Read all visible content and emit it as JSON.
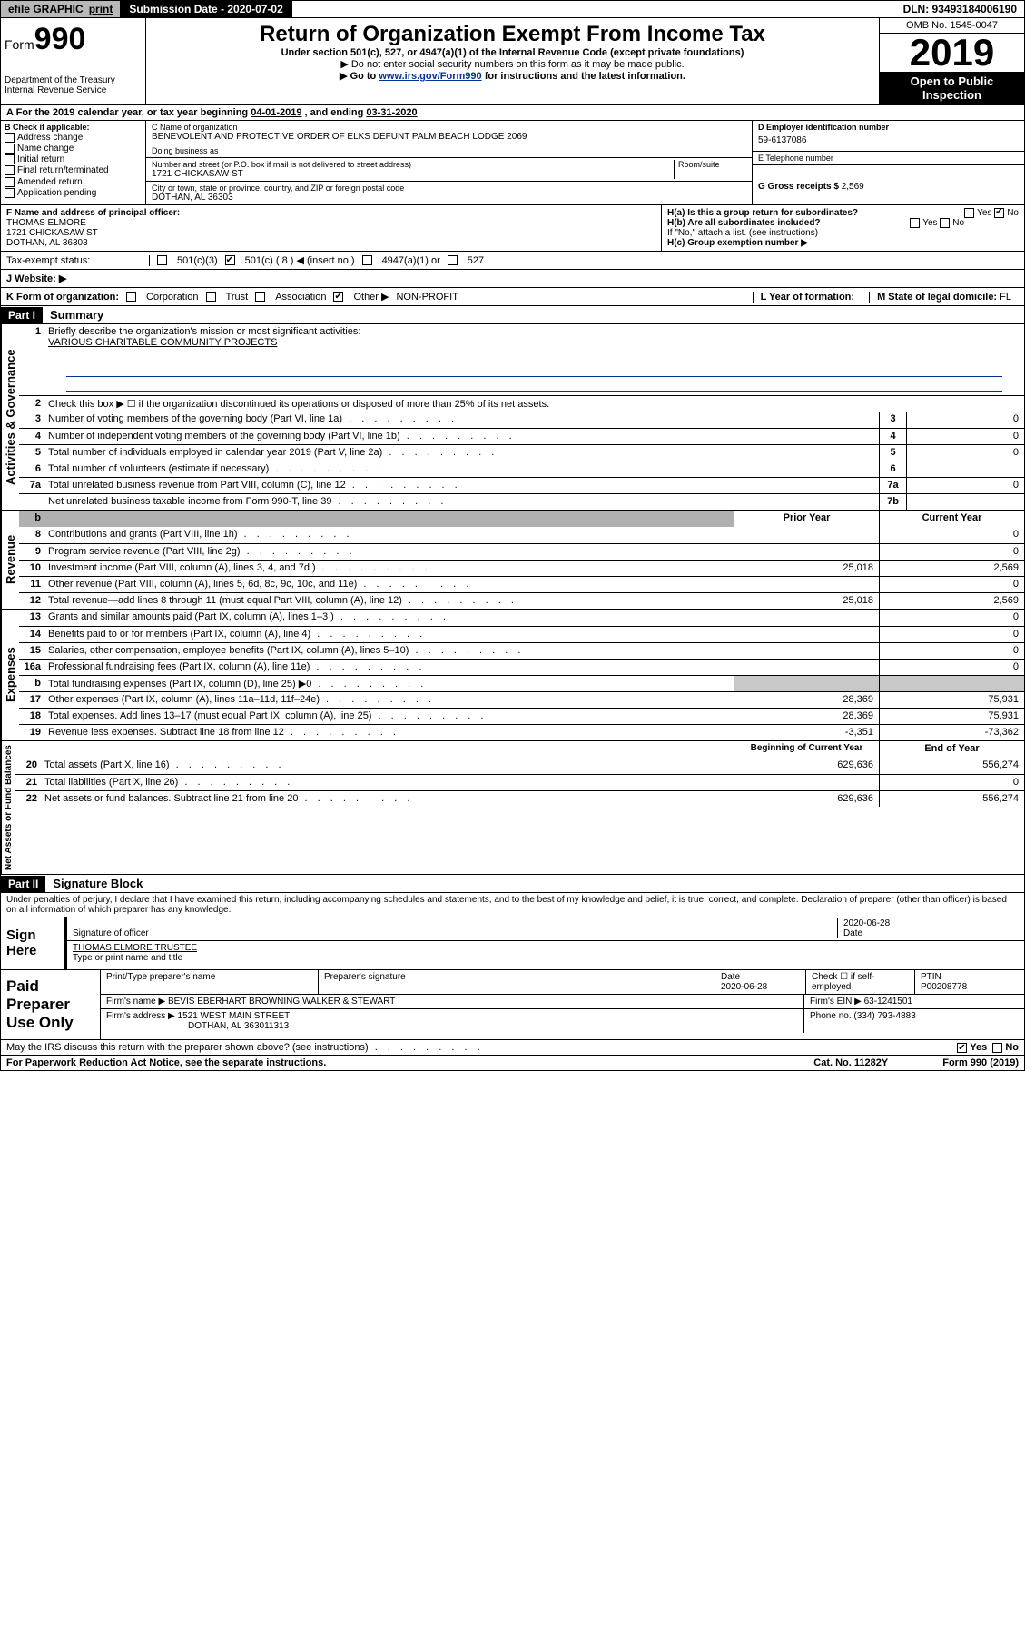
{
  "topbar": {
    "efile": "efile GRAPHIC",
    "print": "print",
    "submission_label": "Submission Date - 2020-07-02",
    "dln": "DLN: 93493184006190"
  },
  "header": {
    "form_prefix": "Form",
    "form_number": "990",
    "title": "Return of Organization Exempt From Income Tax",
    "sub1": "Under section 501(c), 527, or 4947(a)(1) of the Internal Revenue Code (except private foundations)",
    "sub2": "▶ Do not enter social security numbers on this form as it may be made public.",
    "sub3_pre": "▶ Go to ",
    "sub3_link": "www.irs.gov/Form990",
    "sub3_post": " for instructions and the latest information.",
    "dept": "Department of the Treasury",
    "irs": "Internal Revenue Service",
    "omb": "OMB No. 1545-0047",
    "year": "2019",
    "open": "Open to Public Inspection"
  },
  "period": {
    "label_a": "A For the 2019 calendar year, or tax year beginning ",
    "begin": "04-01-2019",
    "mid": " , and ending ",
    "end": "03-31-2020"
  },
  "check_b": {
    "header": "B Check if applicable:",
    "items": [
      "Address change",
      "Name change",
      "Initial return",
      "Final return/terminated",
      "Amended return",
      "Application pending"
    ]
  },
  "c_block": {
    "name_lbl": "C Name of organization",
    "name": "BENEVOLENT AND PROTECTIVE ORDER OF ELKS DEFUNT PALM BEACH LODGE 2069",
    "dba_lbl": "Doing business as",
    "dba": "",
    "addr_lbl": "Number and street (or P.O. box if mail is not delivered to street address)",
    "room_lbl": "Room/suite",
    "addr": "1721 CHICKASAW ST",
    "city_lbl": "City or town, state or province, country, and ZIP or foreign postal code",
    "city": "DOTHAN, AL  36303"
  },
  "d_block": {
    "ein_lbl": "D Employer identification number",
    "ein": "59-6137086",
    "tel_lbl": "E Telephone number",
    "tel": "",
    "gross_lbl": "G Gross receipts $ ",
    "gross": "2,569"
  },
  "f_block": {
    "lbl": "F  Name and address of principal officer:",
    "name": "THOMAS ELMORE",
    "addr1": "1721 CHICKASAW ST",
    "addr2": "DOTHAN, AL  36303"
  },
  "h_block": {
    "ha": "H(a)  Is this a group return for subordinates?",
    "hb": "H(b)  Are all subordinates included?",
    "hb_note": "If \"No,\" attach a list. (see instructions)",
    "hc": "H(c)  Group exemption number ▶",
    "yes": "Yes",
    "no": "No"
  },
  "tax_status": {
    "i": "Tax-exempt status:",
    "opts": [
      "501(c)(3)",
      "501(c) ( 8 ) ◀ (insert no.)",
      "4947(a)(1) or",
      "527"
    ],
    "j": "J   Website: ▶"
  },
  "k_row": {
    "k": "K Form of organization:",
    "opts": [
      "Corporation",
      "Trust",
      "Association",
      "Other ▶"
    ],
    "other_val": "NON-PROFIT",
    "l": "L Year of formation:",
    "m": "M State of legal domicile: ",
    "m_val": "FL"
  },
  "part1": {
    "label": "Part I",
    "title": "Summary",
    "side_gov": "Activities & Governance",
    "side_rev": "Revenue",
    "side_exp": "Expenses",
    "side_net": "Net Assets or Fund Balances",
    "line1": "Briefly describe the organization's mission or most significant activities:",
    "mission": "VARIOUS CHARITABLE COMMUNITY PROJECTS",
    "line2": "Check this box ▶ ☐  if the organization discontinued its operations or disposed of more than 25% of its net assets.",
    "prior": "Prior Year",
    "current": "Current Year",
    "begin": "Beginning of Current Year",
    "endyr": "End of Year",
    "rows_gov": [
      {
        "n": "3",
        "t": "Number of voting members of the governing body (Part VI, line 1a)",
        "c1": "3",
        "c2": "0"
      },
      {
        "n": "4",
        "t": "Number of independent voting members of the governing body (Part VI, line 1b)",
        "c1": "4",
        "c2": "0"
      },
      {
        "n": "5",
        "t": "Total number of individuals employed in calendar year 2019 (Part V, line 2a)",
        "c1": "5",
        "c2": "0"
      },
      {
        "n": "6",
        "t": "Total number of volunteers (estimate if necessary)",
        "c1": "6",
        "c2": ""
      },
      {
        "n": "7a",
        "t": "Total unrelated business revenue from Part VIII, column (C), line 12",
        "c1": "7a",
        "c2": "0"
      },
      {
        "n": "",
        "t": "Net unrelated business taxable income from Form 990-T, line 39",
        "c1": "7b",
        "c2": ""
      }
    ],
    "rows_rev": [
      {
        "n": "8",
        "t": "Contributions and grants (Part VIII, line 1h)",
        "p": "",
        "c": "0"
      },
      {
        "n": "9",
        "t": "Program service revenue (Part VIII, line 2g)",
        "p": "",
        "c": "0"
      },
      {
        "n": "10",
        "t": "Investment income (Part VIII, column (A), lines 3, 4, and 7d )",
        "p": "25,018",
        "c": "2,569"
      },
      {
        "n": "11",
        "t": "Other revenue (Part VIII, column (A), lines 5, 6d, 8c, 9c, 10c, and 11e)",
        "p": "",
        "c": "0"
      },
      {
        "n": "12",
        "t": "Total revenue—add lines 8 through 11 (must equal Part VIII, column (A), line 12)",
        "p": "25,018",
        "c": "2,569"
      }
    ],
    "rows_exp": [
      {
        "n": "13",
        "t": "Grants and similar amounts paid (Part IX, column (A), lines 1–3 )",
        "p": "",
        "c": "0"
      },
      {
        "n": "14",
        "t": "Benefits paid to or for members (Part IX, column (A), line 4)",
        "p": "",
        "c": "0"
      },
      {
        "n": "15",
        "t": "Salaries, other compensation, employee benefits (Part IX, column (A), lines 5–10)",
        "p": "",
        "c": "0"
      },
      {
        "n": "16a",
        "t": "Professional fundraising fees (Part IX, column (A), line 11e)",
        "p": "",
        "c": "0"
      },
      {
        "n": "b",
        "t": "Total fundraising expenses (Part IX, column (D), line 25) ▶0",
        "p": "grey",
        "c": "grey"
      },
      {
        "n": "17",
        "t": "Other expenses (Part IX, column (A), lines 11a–11d, 11f–24e)",
        "p": "28,369",
        "c": "75,931"
      },
      {
        "n": "18",
        "t": "Total expenses. Add lines 13–17 (must equal Part IX, column (A), line 25)",
        "p": "28,369",
        "c": "75,931"
      },
      {
        "n": "19",
        "t": "Revenue less expenses. Subtract line 18 from line 12",
        "p": "-3,351",
        "c": "-73,362"
      }
    ],
    "rows_net": [
      {
        "n": "20",
        "t": "Total assets (Part X, line 16)",
        "p": "629,636",
        "c": "556,274"
      },
      {
        "n": "21",
        "t": "Total liabilities (Part X, line 26)",
        "p": "",
        "c": "0"
      },
      {
        "n": "22",
        "t": "Net assets or fund balances. Subtract line 21 from line 20",
        "p": "629,636",
        "c": "556,274"
      }
    ]
  },
  "part2": {
    "label": "Part II",
    "title": "Signature Block",
    "perjury": "Under penalties of perjury, I declare that I have examined this return, including accompanying schedules and statements, and to the best of my knowledge and belief, it is true, correct, and complete. Declaration of preparer (other than officer) is based on all information of which preparer has any knowledge.",
    "sign_here": "Sign Here",
    "sig_officer": "Signature of officer",
    "date": "2020-06-28",
    "date_lbl": "Date",
    "officer_name": "THOMAS ELMORE TRUSTEE",
    "type_name": "Type or print name and title",
    "paid": "Paid Preparer Use Only",
    "prep_name_lbl": "Print/Type preparer's name",
    "prep_sig_lbl": "Preparer's signature",
    "prep_date_lbl": "Date",
    "prep_date": "2020-06-28",
    "check_lbl": "Check ☐ if self-employed",
    "ptin_lbl": "PTIN",
    "ptin": "P00208778",
    "firm_name_lbl": "Firm's name   ▶",
    "firm_name": "BEVIS EBERHART BROWNING WALKER & STEWART",
    "firm_ein_lbl": "Firm's EIN ▶",
    "firm_ein": "63-1241501",
    "firm_addr_lbl": "Firm's address ▶",
    "firm_addr": "1521 WEST MAIN STREET",
    "firm_city": "DOTHAN, AL  363011313",
    "phone_lbl": "Phone no. ",
    "phone": "(334) 793-4883",
    "discuss": "May the IRS discuss this return with the preparer shown above? (see instructions)",
    "paperwork": "For Paperwork Reduction Act Notice, see the separate instructions.",
    "cat": "Cat. No. 11282Y",
    "form_foot": "Form 990 (2019)"
  }
}
